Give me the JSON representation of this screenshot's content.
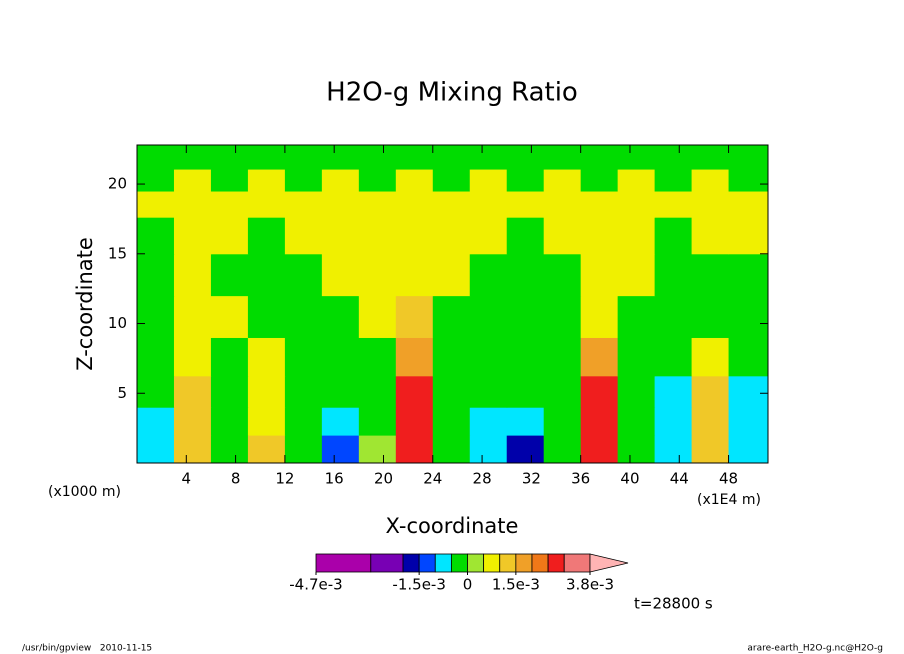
{
  "chart_data": {
    "type": "contour",
    "title": "H2O-g Mixing Ratio",
    "xlabel": "X-coordinate",
    "ylabel": "Z-coordinate",
    "x_unit_left": "(x1000 m)",
    "x_unit_right": "(x1E4 m)",
    "time_label": "t=28800 s",
    "footer_left": "/usr/bin/gpview   2010-11-15",
    "footer_right": "arare-earth_H2O-g.nc@H2O-g",
    "xlim": [
      0,
      51.2
    ],
    "ylim": [
      0,
      22.8
    ],
    "xticks": [
      4,
      8,
      12,
      16,
      20,
      24,
      28,
      32,
      36,
      40,
      44,
      48
    ],
    "yticks": [
      5,
      10,
      15,
      20
    ],
    "field": {
      "x": [
        1.5,
        4.5,
        7.5,
        10.5,
        13.5,
        16.5,
        19.5,
        22.5,
        25.5,
        28.5,
        31.5,
        34.5,
        37.5,
        40.5,
        43.5,
        46.5,
        49.5
      ],
      "z": [
        1,
        3,
        5,
        7.5,
        10.5,
        13.5,
        16.5,
        18.75,
        20.25,
        21.9
      ],
      "values": [
        [
          -0.0008,
          0.0012,
          -0.0002,
          0.0012,
          -0.0002,
          -0.0012,
          0.0002,
          0.0027,
          -0.0002,
          -0.0008,
          -0.0017,
          -0.0002,
          0.0027,
          -0.0002,
          -0.0008,
          0.0012,
          -0.0008
        ],
        [
          -0.0008,
          0.0012,
          -0.0002,
          0.0007,
          -0.0002,
          -0.0008,
          -0.0002,
          0.0027,
          -0.0002,
          -0.0008,
          -0.0008,
          -0.0002,
          0.0027,
          -0.0002,
          -0.0008,
          0.0012,
          -0.0008
        ],
        [
          -0.0002,
          0.0012,
          -0.0002,
          0.0007,
          -0.0002,
          -0.0002,
          -0.0002,
          0.0027,
          -0.0002,
          -0.0002,
          -0.0002,
          -0.0002,
          0.0027,
          -0.0002,
          -0.0008,
          0.0012,
          -0.0008
        ],
        [
          -0.0002,
          0.0007,
          -0.0002,
          0.0007,
          -0.0002,
          -0.0002,
          -0.0002,
          0.0017,
          -0.0002,
          -0.0002,
          -0.0002,
          -0.0002,
          0.0017,
          -0.0002,
          -0.0002,
          0.0007,
          -0.0002
        ],
        [
          -0.0002,
          0.0007,
          0.0007,
          -0.0002,
          -0.0002,
          -0.0002,
          0.0007,
          0.0012,
          -0.0002,
          -0.0002,
          -0.0002,
          -0.0002,
          0.0007,
          -0.0002,
          -0.0002,
          -0.0002,
          -0.0002
        ],
        [
          -0.0002,
          0.0007,
          -0.0002,
          -0.0002,
          -0.0002,
          0.0007,
          0.0007,
          0.0007,
          0.0007,
          -0.0002,
          -0.0002,
          -0.0002,
          0.0007,
          0.0007,
          -0.0002,
          -0.0002,
          -0.0002
        ],
        [
          -0.0002,
          0.0007,
          0.0007,
          -0.0002,
          0.0007,
          0.0007,
          0.0007,
          0.0007,
          0.0007,
          0.0007,
          -0.0002,
          0.0007,
          0.0007,
          0.0007,
          -0.0002,
          0.0007,
          0.0007
        ],
        [
          0.0007,
          0.0007,
          0.0007,
          0.0007,
          0.0007,
          0.0007,
          0.0007,
          0.0007,
          0.0007,
          0.0007,
          0.0007,
          0.0007,
          0.0007,
          0.0007,
          0.0007,
          0.0007,
          0.0007
        ],
        [
          -0.0002,
          0.0007,
          -0.0002,
          0.0007,
          -0.0002,
          0.0007,
          -0.0002,
          0.0007,
          -0.0002,
          0.0007,
          -0.0002,
          0.0007,
          -0.0002,
          0.0007,
          -0.0002,
          0.0007,
          -0.0002
        ],
        [
          -0.0002,
          -0.0002,
          -0.0002,
          -0.0002,
          -0.0002,
          -0.0002,
          -0.0002,
          -0.0002,
          -0.0002,
          -0.0002,
          -0.0002,
          -0.0002,
          -0.0002,
          -0.0002,
          -0.0002,
          -0.0002,
          -0.0002
        ]
      ]
    },
    "colorbar": {
      "levels": [
        -0.0047,
        -0.003,
        -0.002,
        -0.0015,
        -0.001,
        -0.0005,
        0,
        0.0005,
        0.001,
        0.0015,
        0.002,
        0.0025,
        0.003,
        0.0038
      ],
      "colors": [
        "#aa00aa",
        "#7800b4",
        "#0000aa",
        "#0046ff",
        "#00e6ff",
        "#00dc00",
        "#a0e632",
        "#f0f000",
        "#f0c828",
        "#f0a028",
        "#f07818",
        "#f01e1e",
        "#f07878",
        "#ffb4b4"
      ],
      "ticks": [
        {
          "value": -0.0047,
          "label": "-4.7e-3"
        },
        {
          "value": -0.0015,
          "label": "-1.5e-3"
        },
        0,
        {
          "value": 0.0015,
          "label": "1.5e-3"
        },
        {
          "value": 0.0038,
          "label": "3.8e-3"
        }
      ]
    }
  }
}
